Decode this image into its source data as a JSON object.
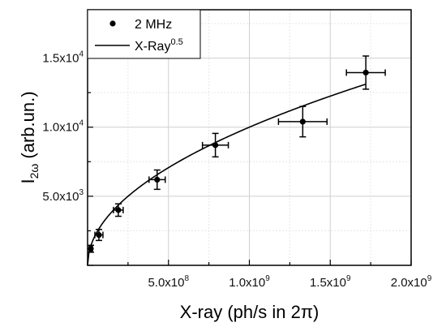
{
  "chart_data": {
    "type": "scatter",
    "xlabel": {
      "main": "X-ray (ph/s in 2",
      "greek": "π",
      "close": ")"
    },
    "ylabel": {
      "main": "I",
      "sub": "2ω",
      "unit": " (arb.un.)"
    },
    "xlim": [
      0,
      2000000000
    ],
    "ylim": [
      0,
      18500
    ],
    "x_ticks": [
      {
        "value": 500000000,
        "mantissa": "5.0x10",
        "exp": "8"
      },
      {
        "value": 1000000000,
        "mantissa": "1.0x10",
        "exp": "9"
      },
      {
        "value": 1500000000,
        "mantissa": "1.5x10",
        "exp": "9"
      },
      {
        "value": 2000000000,
        "mantissa": "2.0x10",
        "exp": "9"
      }
    ],
    "y_ticks": [
      {
        "value": 5000,
        "mantissa": "5.0x10",
        "exp": "3"
      },
      {
        "value": 10000,
        "mantissa": "1.0x10",
        "exp": "4"
      },
      {
        "value": 15000,
        "mantissa": "1.5x10",
        "exp": "4"
      }
    ],
    "grid": true,
    "legend_position": "top-left",
    "series": [
      {
        "name": "2 MHz",
        "kind": "points",
        "points": [
          {
            "x": 20000000,
            "y": 1200,
            "xerr": 10000000,
            "yerr": 250
          },
          {
            "x": 70000000,
            "y": 2200,
            "xerr": 25000000,
            "yerr": 400
          },
          {
            "x": 190000000,
            "y": 4000,
            "xerr": 30000000,
            "yerr": 450
          },
          {
            "x": 430000000,
            "y": 6200,
            "xerr": 50000000,
            "yerr": 700
          },
          {
            "x": 790000000,
            "y": 8700,
            "xerr": 80000000,
            "yerr": 850
          },
          {
            "x": 1330000000,
            "y": 10400,
            "xerr": 150000000,
            "yerr": 1100
          },
          {
            "x": 1720000000,
            "y": 13950,
            "xerr": 120000000,
            "yerr": 1200
          }
        ]
      },
      {
        "name_main": "X-Ray",
        "name_exp": "0.5",
        "kind": "fit",
        "coefficient": 0.3162,
        "exponent": 0.5,
        "x_range": [
          0,
          1720000000
        ]
      }
    ]
  }
}
